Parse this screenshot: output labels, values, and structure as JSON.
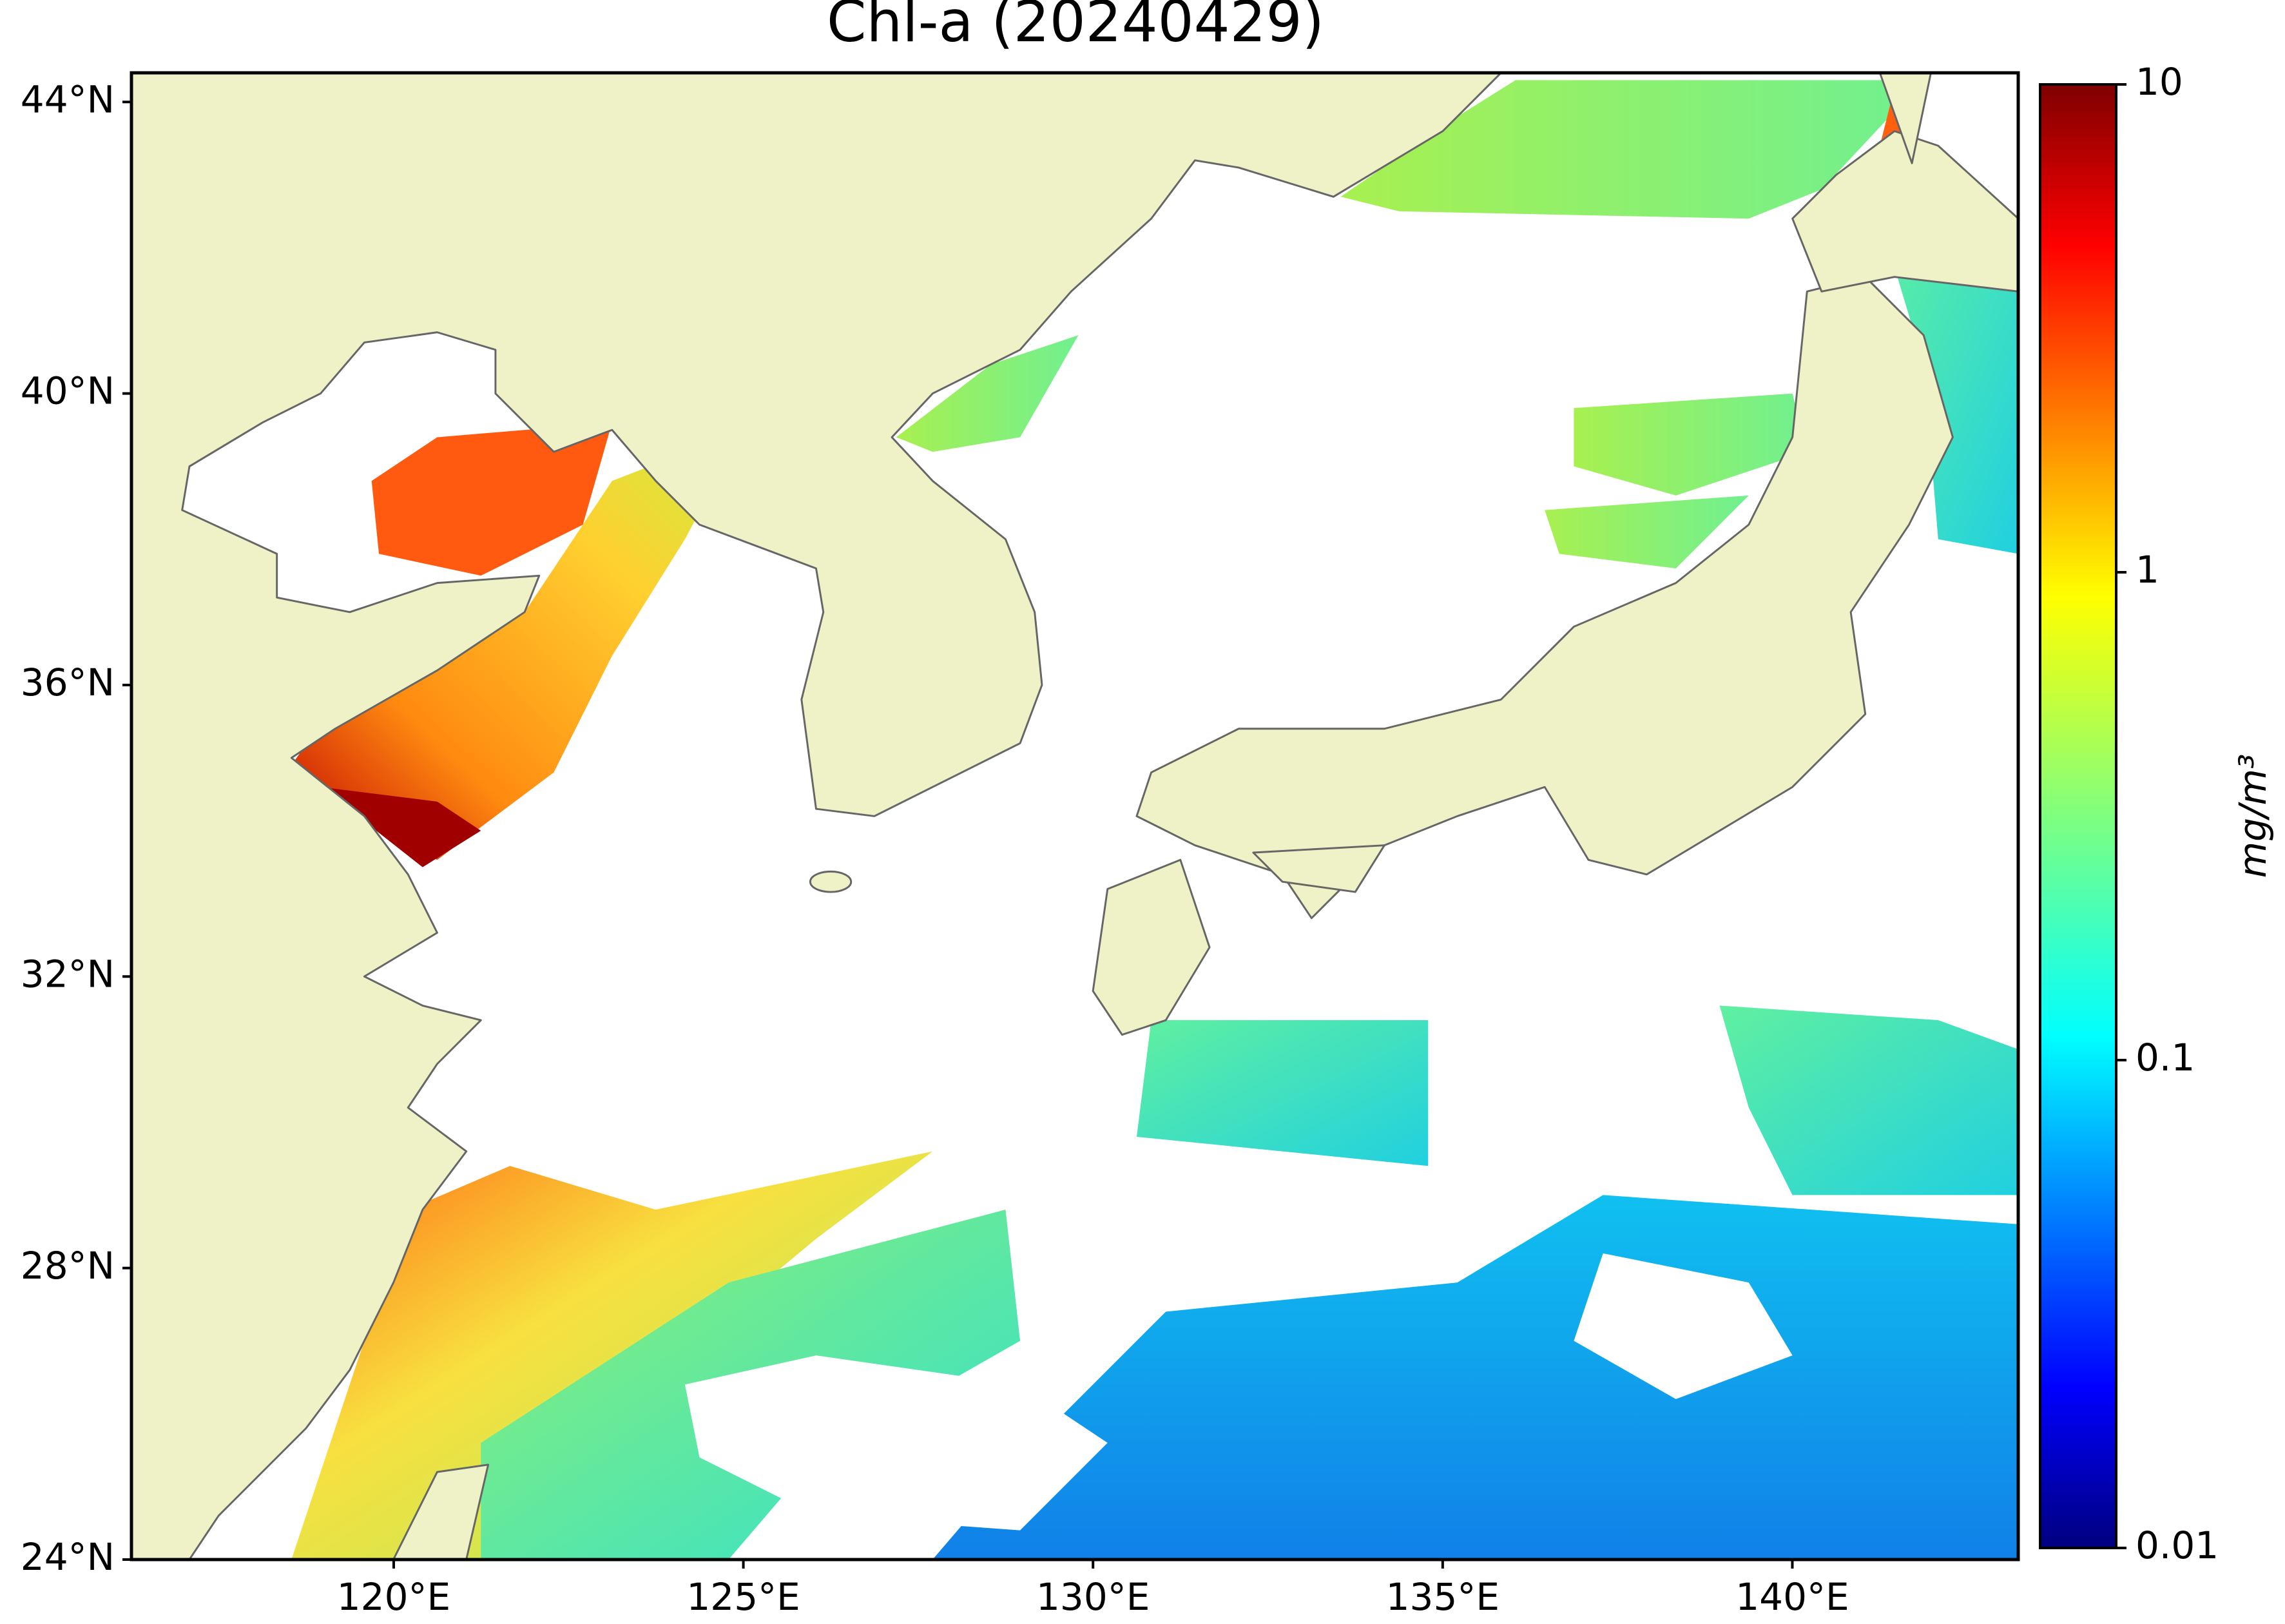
{
  "chart_data": {
    "type": "map",
    "title": "Chl-a (20240429)",
    "xlim": [
      116.25,
      143.23
    ],
    "ylim": [
      24,
      44.4
    ],
    "xticks": [
      {
        "value": 120,
        "label": "120°E"
      },
      {
        "value": 125,
        "label": "125°E"
      },
      {
        "value": 130,
        "label": "130°E"
      },
      {
        "value": 135,
        "label": "135°E"
      },
      {
        "value": 140,
        "label": "140°E"
      }
    ],
    "yticks": [
      {
        "value": 24,
        "label": "24°N"
      },
      {
        "value": 28,
        "label": "28°N"
      },
      {
        "value": 32,
        "label": "32°N"
      },
      {
        "value": 36,
        "label": "36°N"
      },
      {
        "value": 40,
        "label": "40°N"
      },
      {
        "value": 44,
        "label": "44°N"
      }
    ],
    "colorbar": {
      "label": "mg/m³",
      "scale": "log",
      "lim": [
        0.01,
        10
      ],
      "ticks": [
        0.01,
        0.1,
        1,
        10
      ],
      "colormap": "jet"
    }
  }
}
